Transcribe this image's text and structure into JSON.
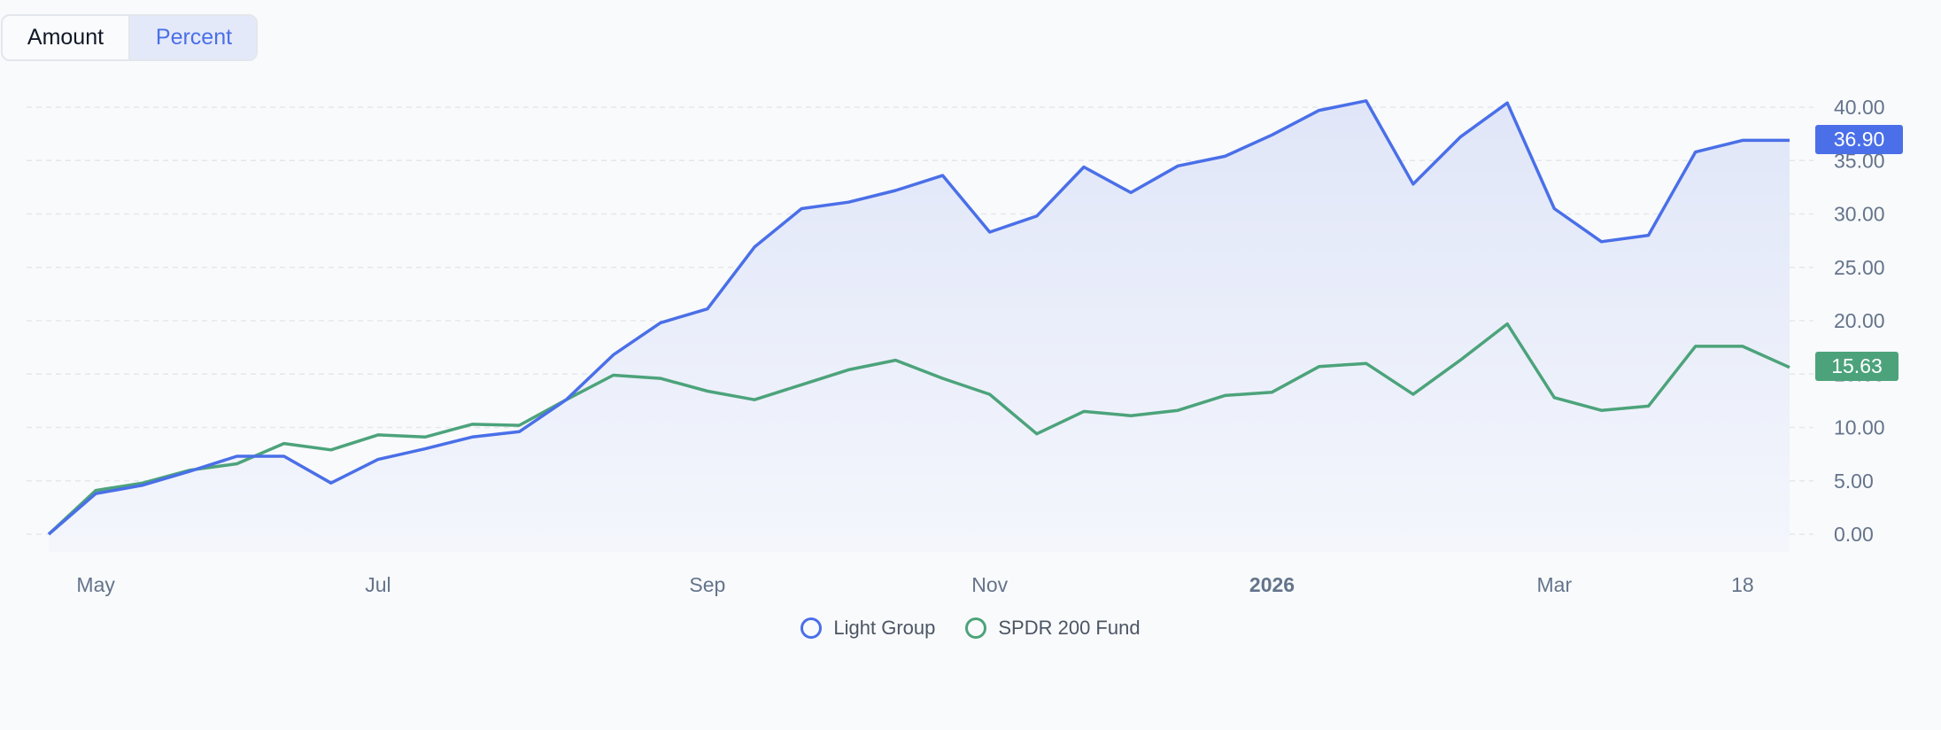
{
  "toggle": {
    "options": [
      {
        "label": "Amount",
        "active": false
      },
      {
        "label": "Percent",
        "active": true
      }
    ]
  },
  "colors": {
    "series1": "#4a6fe8",
    "series2": "#4ca37b",
    "grid": "#e5e7eb",
    "axis_text": "#64748b",
    "fill_top": "#e0e6f8",
    "fill_bottom": "#f4f6fc"
  },
  "badges": {
    "series1_last": "36.90",
    "series2_last": "15.63"
  },
  "legend": {
    "items": [
      {
        "label": "Light Group",
        "color": "#4a6fe8"
      },
      {
        "label": "SPDR 200 Fund",
        "color": "#4ca37b"
      }
    ]
  },
  "chart_data": {
    "type": "line",
    "title": "",
    "xlabel": "",
    "ylabel": "",
    "ylim": [
      0,
      40
    ],
    "grid": true,
    "legend_position": "bottom",
    "y_ticks": [
      "0.00",
      "5.00",
      "10.00",
      "15.00",
      "20.00",
      "25.00",
      "30.00",
      "35.00",
      "40.00"
    ],
    "x_tick_labels": [
      {
        "label": "May",
        "index": 1,
        "bold": false
      },
      {
        "label": "Jul",
        "index": 7,
        "bold": false
      },
      {
        "label": "Sep",
        "index": 14,
        "bold": false
      },
      {
        "label": "Nov",
        "index": 20,
        "bold": false
      },
      {
        "label": "2026",
        "index": 26,
        "bold": true
      },
      {
        "label": "Mar",
        "index": 32,
        "bold": false
      },
      {
        "label": "18",
        "index": 36,
        "bold": false
      }
    ],
    "series": [
      {
        "name": "Light Group",
        "color": "#4a6fe8",
        "filled": true,
        "values": [
          0,
          3.8,
          4.6,
          5.9,
          7.3,
          7.3,
          4.8,
          7.0,
          8.0,
          9.1,
          9.6,
          12.6,
          16.8,
          19.8,
          21.1,
          26.9,
          30.5,
          31.1,
          32.2,
          33.6,
          28.3,
          29.8,
          34.4,
          32.0,
          34.5,
          35.4,
          37.4,
          39.7,
          40.6,
          32.8,
          37.2,
          40.4,
          30.5,
          27.4,
          28.0,
          35.8,
          36.9,
          36.9
        ]
      },
      {
        "name": "SPDR 200 Fund",
        "color": "#4ca37b",
        "filled": false,
        "values": [
          0,
          4.1,
          4.8,
          6.0,
          6.6,
          8.5,
          7.9,
          9.3,
          9.1,
          10.3,
          10.2,
          12.6,
          14.9,
          14.6,
          13.4,
          12.6,
          14.0,
          15.4,
          16.3,
          14.6,
          13.1,
          9.4,
          11.5,
          11.1,
          11.6,
          13.0,
          13.3,
          15.7,
          16.0,
          13.1,
          16.3,
          19.7,
          12.8,
          11.6,
          12.0,
          17.6,
          17.6,
          15.63
        ]
      }
    ]
  }
}
